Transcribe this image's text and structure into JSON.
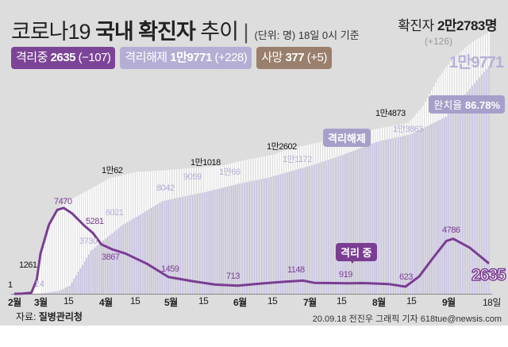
{
  "header": {
    "title_light": "코로나19",
    "title_bold": "국내 확진자",
    "title_tail": "추이",
    "unit_note": "(단위: 명) 18일 0시 기준",
    "total_label": "확진자",
    "total_value": "2만2783명",
    "total_delta": "(+126)"
  },
  "legend": [
    {
      "label": "격리중",
      "value": "2635",
      "delta": "(−107)",
      "color": "#7c4496"
    },
    {
      "label": "격리해제",
      "value": "1만9771",
      "delta": "(+228)",
      "color": "#b4aed4"
    },
    {
      "label": "사망",
      "value": "377",
      "delta": "(+5)",
      "color": "#9a7f6c"
    }
  ],
  "colors": {
    "background": "#dcdddc",
    "cumulative": "#ffffff",
    "released": "#c9c2e2",
    "active_line": "#7a3d92"
  },
  "chart_data": {
    "type": "area+line",
    "x_ticks": [
      {
        "date": "02-01",
        "label": "2월",
        "major": true
      },
      {
        "date": "03-01",
        "label": "3월",
        "major": true
      },
      {
        "date": "03-15",
        "label": "15"
      },
      {
        "date": "04-01",
        "label": "4월",
        "major": true
      },
      {
        "date": "04-15",
        "label": "15"
      },
      {
        "date": "05-01",
        "label": "5월",
        "major": true
      },
      {
        "date": "05-15",
        "label": "15"
      },
      {
        "date": "06-01",
        "label": "6월",
        "major": true
      },
      {
        "date": "06-15",
        "label": "15"
      },
      {
        "date": "07-01",
        "label": "7월",
        "major": true
      },
      {
        "date": "07-15",
        "label": "15"
      },
      {
        "date": "08-01",
        "label": "8월",
        "major": true
      },
      {
        "date": "08-15",
        "label": "15"
      },
      {
        "date": "09-01",
        "label": "9월",
        "major": true
      },
      {
        "date": "09-18",
        "label": "18일"
      }
    ],
    "ylim": [
      0,
      22783
    ],
    "series": [
      {
        "name": "확진자",
        "points": [
          [
            "02-01",
            1
          ],
          [
            "02-18",
            31
          ],
          [
            "02-24",
            833
          ],
          [
            "02-29",
            3150
          ],
          [
            "03-05",
            6088
          ],
          [
            "03-10",
            7513
          ],
          [
            "03-15",
            8162
          ],
          [
            "03-25",
            9137
          ],
          [
            "04-03",
            10062
          ],
          [
            "04-15",
            10591
          ],
          [
            "04-30",
            10765
          ],
          [
            "05-15",
            11018
          ],
          [
            "05-25",
            11206
          ],
          [
            "06-01",
            11541
          ],
          [
            "06-15",
            12121
          ],
          [
            "06-22",
            12602
          ],
          [
            "07-15",
            13612
          ],
          [
            "07-31",
            14336
          ],
          [
            "08-13",
            14873
          ],
          [
            "08-20",
            16346
          ],
          [
            "08-27",
            18706
          ],
          [
            "09-03",
            20449
          ],
          [
            "09-10",
            21743
          ],
          [
            "09-18",
            22783
          ]
        ]
      },
      {
        "name": "격리해제",
        "points": [
          [
            "02-01",
            0
          ],
          [
            "03-01",
            24
          ],
          [
            "03-10",
            250
          ],
          [
            "03-15",
            714
          ],
          [
            "03-25",
            3730
          ],
          [
            "04-09",
            6021
          ],
          [
            "04-27",
            8042
          ],
          [
            "05-20",
            9059
          ],
          [
            "06-12",
            10066
          ],
          [
            "07-02",
            11172
          ],
          [
            "07-31",
            13200
          ],
          [
            "08-14",
            13863
          ],
          [
            "08-31",
            15400
          ],
          [
            "09-18",
            19771
          ]
        ]
      },
      {
        "name": "격리 중",
        "points": [
          [
            "02-01",
            1
          ],
          [
            "02-10",
            20
          ],
          [
            "02-20",
            100
          ],
          [
            "02-26",
            1261
          ],
          [
            "03-01",
            3500
          ],
          [
            "03-05",
            6000
          ],
          [
            "03-09",
            7300
          ],
          [
            "03-12",
            7470
          ],
          [
            "03-16",
            7000
          ],
          [
            "03-22",
            5900
          ],
          [
            "03-26",
            5281
          ],
          [
            "03-30",
            4300
          ],
          [
            "04-04",
            3867
          ],
          [
            "04-10",
            3500
          ],
          [
            "04-20",
            2600
          ],
          [
            "04-30",
            1459
          ],
          [
            "05-10",
            1100
          ],
          [
            "05-20",
            800
          ],
          [
            "05-31",
            713
          ],
          [
            "06-10",
            900
          ],
          [
            "06-20",
            1050
          ],
          [
            "06-28",
            1148
          ],
          [
            "07-03",
            950
          ],
          [
            "07-18",
            919
          ],
          [
            "07-25",
            930
          ],
          [
            "08-05",
            850
          ],
          [
            "08-12",
            623
          ],
          [
            "08-18",
            1500
          ],
          [
            "08-25",
            3200
          ],
          [
            "08-31",
            4600
          ],
          [
            "09-03",
            4786
          ],
          [
            "09-10",
            4000
          ],
          [
            "09-18",
            2635
          ]
        ]
      }
    ],
    "labels": {
      "total": [
        "1만62",
        "1만1018",
        "1만2602",
        "1만4873"
      ],
      "released": [
        "24",
        "3730",
        "6021",
        "8042",
        "9059",
        "1만66",
        "1만1172",
        "1만3863"
      ],
      "active": [
        "1",
        "1261",
        "7470",
        "5281",
        "3867",
        "1459",
        "713",
        "1148",
        "919",
        "623",
        "4786"
      ]
    },
    "tags": {
      "released": "격리해제",
      "recovery": "완치율",
      "recovery_rate": "86.78%",
      "active": "격리 중",
      "active_end": "2635",
      "released_end": "1만9771"
    }
  },
  "footer": {
    "source_label": "자료:",
    "source": "질병관리청",
    "credit": "20.09.18 전진우 그래픽 기자 618tue@newsis.com"
  }
}
